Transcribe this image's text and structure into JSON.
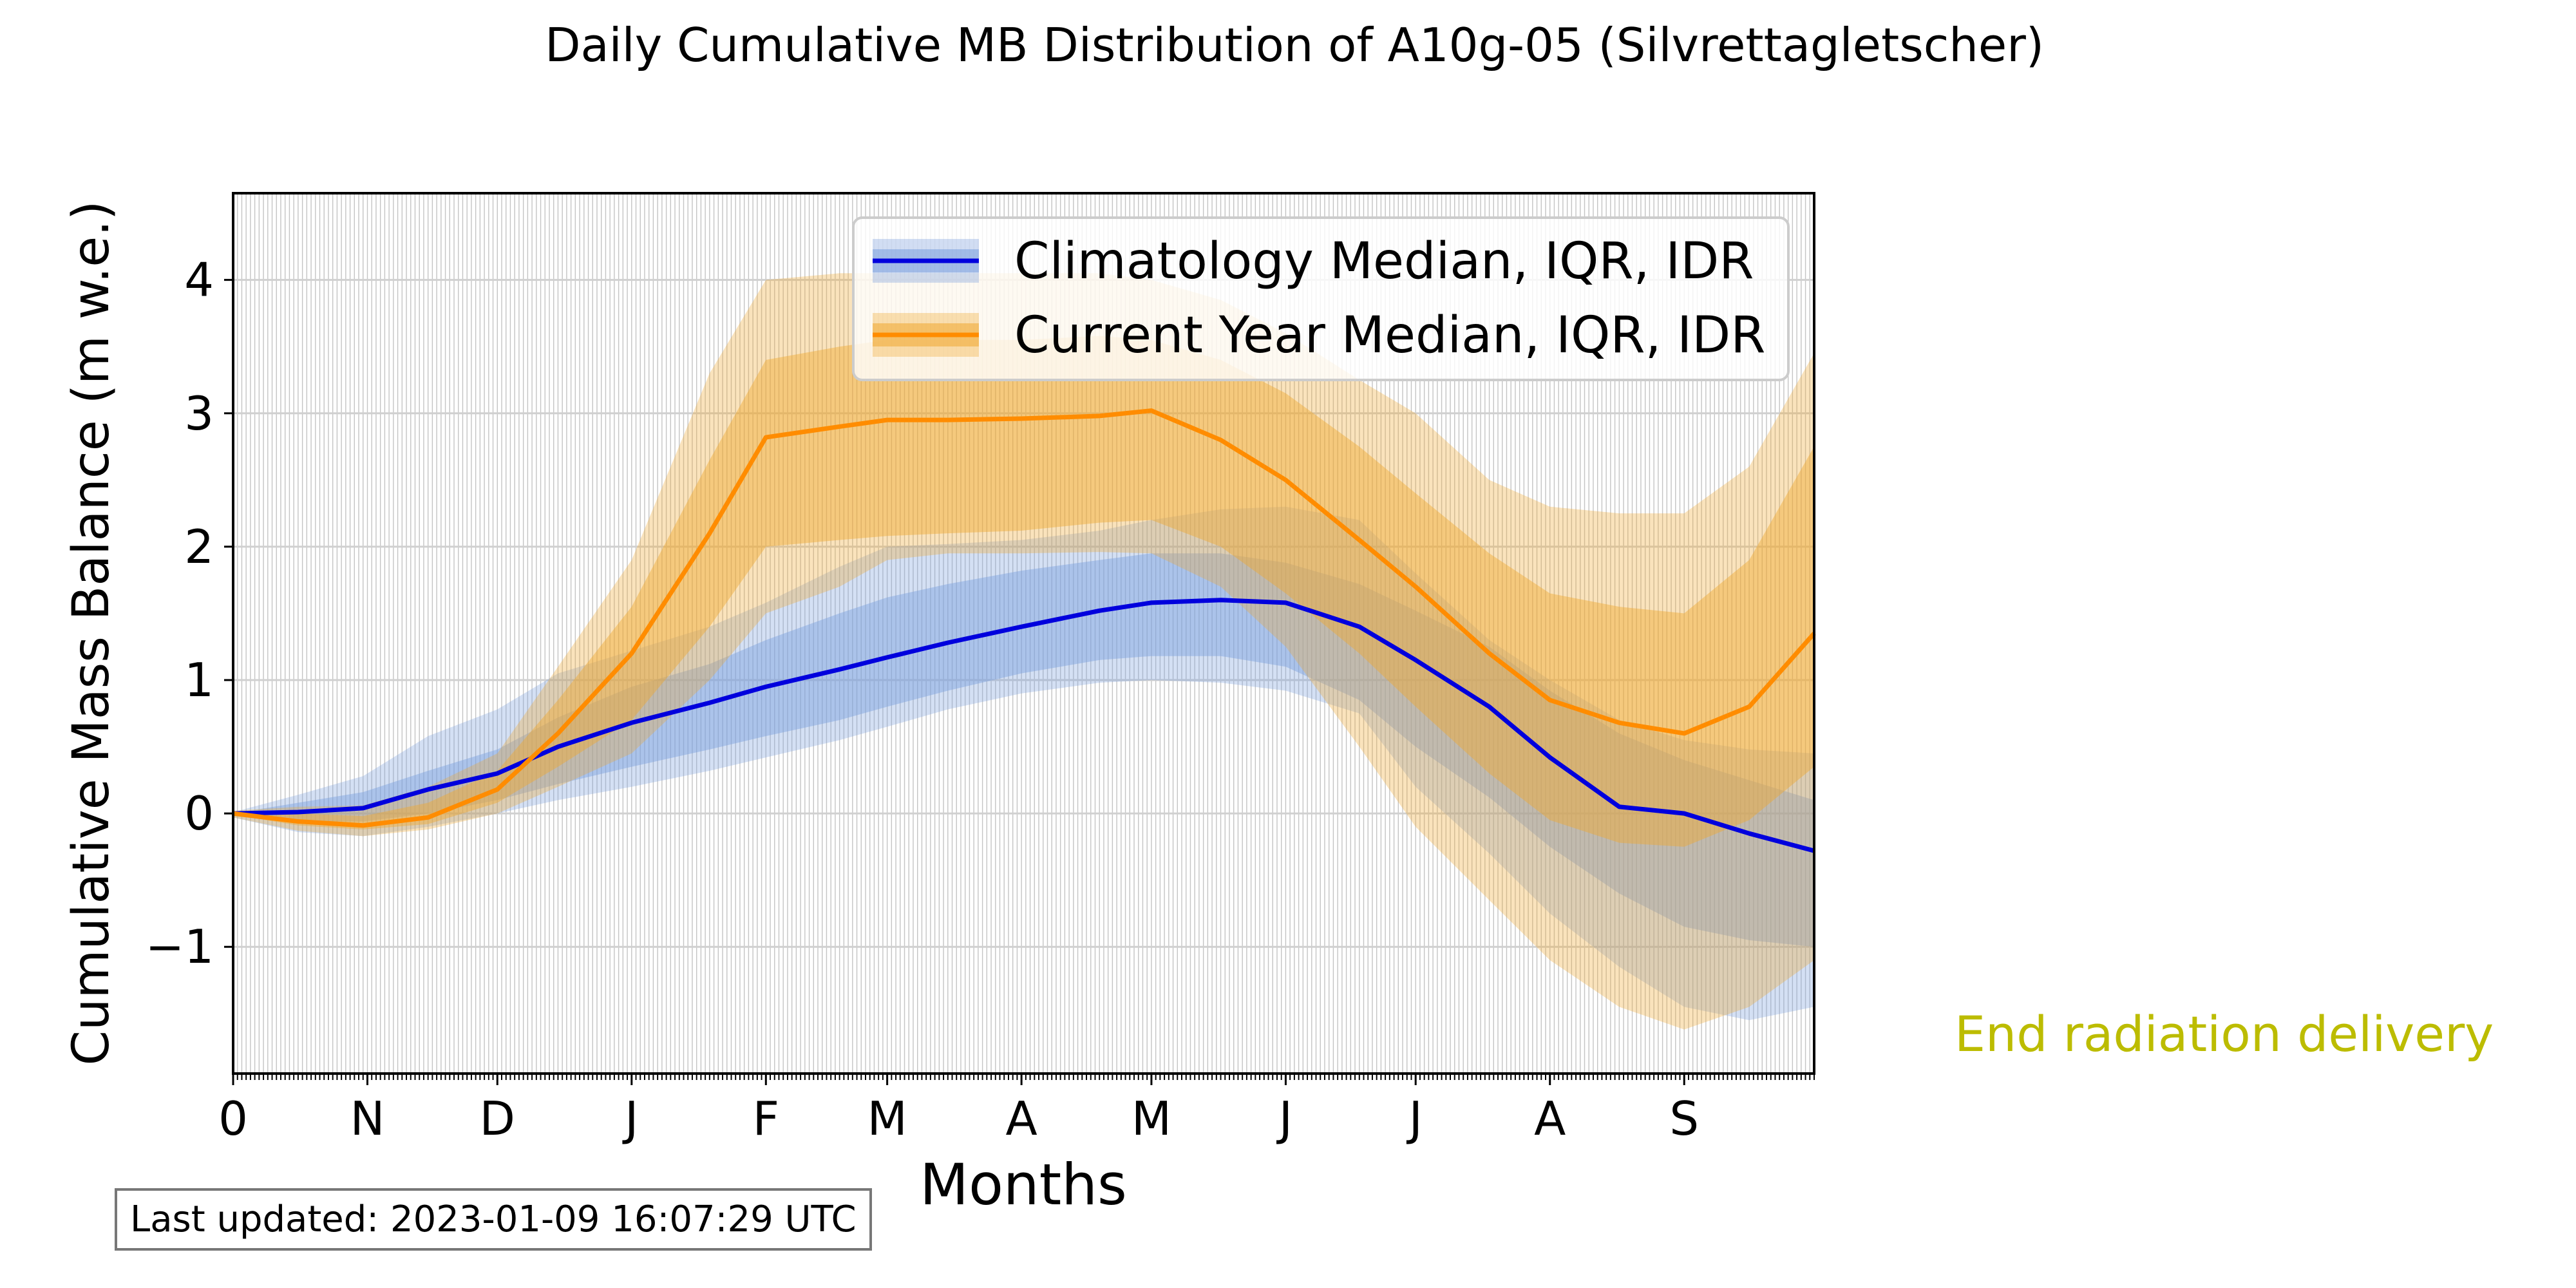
{
  "footer": {
    "last_updated": "Last updated: 2023-01-09 16:07:29 UTC"
  },
  "colors": {
    "climatology_line": "#0000dd",
    "climatology_band": "#7a9fdd",
    "current_line": "#ff8c00",
    "current_band": "#f0a830",
    "annotation": "#bcbc00",
    "grid": "#d0d0d0"
  },
  "chart_data": {
    "type": "line",
    "title": "Daily Cumulative MB Distribution of A10g-05 (Silvrettagletscher)",
    "xlabel": "Months",
    "ylabel": "Cumulative Mass Balance (m w.e.)",
    "x_unit": "day of hydrological year",
    "xlim": [
      0,
      365
    ],
    "ylim": [
      -1.95,
      4.65
    ],
    "yticks": [
      -1,
      0,
      1,
      2,
      3,
      4
    ],
    "ytick_labels": [
      "−1",
      "0",
      "1",
      "2",
      "3",
      "4"
    ],
    "month_ticks": [
      {
        "x": 0,
        "label": "0"
      },
      {
        "x": 31,
        "label": "N"
      },
      {
        "x": 61,
        "label": "D"
      },
      {
        "x": 92,
        "label": "J"
      },
      {
        "x": 123,
        "label": "F"
      },
      {
        "x": 151,
        "label": "M"
      },
      {
        "x": 182,
        "label": "A"
      },
      {
        "x": 212,
        "label": "M"
      },
      {
        "x": 243,
        "label": "J"
      },
      {
        "x": 273,
        "label": "J"
      },
      {
        "x": 304,
        "label": "A"
      },
      {
        "x": 335,
        "label": "S"
      }
    ],
    "grid": true,
    "legend_position": "top-right",
    "annotation": "End radiation delivery",
    "series": [
      {
        "name": "Climatology Median, IQR, IDR",
        "x": [
          0,
          15,
          30,
          45,
          61,
          75,
          92,
          110,
          123,
          140,
          151,
          165,
          182,
          200,
          212,
          228,
          243,
          260,
          273,
          290,
          304,
          320,
          335,
          350,
          365
        ],
        "median": [
          0,
          0.01,
          0.04,
          0.18,
          0.3,
          0.5,
          0.68,
          0.83,
          0.95,
          1.08,
          1.17,
          1.28,
          1.4,
          1.52,
          1.58,
          1.6,
          1.58,
          1.4,
          1.15,
          0.8,
          0.42,
          0.05,
          0.0,
          -0.15,
          -0.28
        ],
        "q25": [
          -0.02,
          -0.06,
          -0.06,
          0.0,
          0.1,
          0.22,
          0.35,
          0.48,
          0.58,
          0.7,
          0.8,
          0.92,
          1.05,
          1.15,
          1.18,
          1.18,
          1.1,
          0.85,
          0.5,
          0.12,
          -0.25,
          -0.6,
          -0.85,
          -0.95,
          -1.0
        ],
        "q75": [
          0,
          0.08,
          0.16,
          0.32,
          0.48,
          0.72,
          0.95,
          1.12,
          1.3,
          1.5,
          1.62,
          1.72,
          1.82,
          1.9,
          1.95,
          1.95,
          1.88,
          1.72,
          1.52,
          1.25,
          0.92,
          0.6,
          0.4,
          0.25,
          0.1
        ],
        "p10": [
          -0.03,
          -0.14,
          -0.17,
          -0.1,
          0.0,
          0.1,
          0.2,
          0.32,
          0.42,
          0.55,
          0.65,
          0.78,
          0.9,
          0.98,
          1.0,
          0.98,
          0.92,
          0.75,
          0.2,
          -0.3,
          -0.75,
          -1.15,
          -1.45,
          -1.55,
          -1.45
        ],
        "p90": [
          0.01,
          0.14,
          0.28,
          0.58,
          0.78,
          1.05,
          1.22,
          1.4,
          1.58,
          1.85,
          2.0,
          2.02,
          2.05,
          2.12,
          2.2,
          2.28,
          2.3,
          2.2,
          1.8,
          1.3,
          1.0,
          0.7,
          0.55,
          0.48,
          0.45
        ]
      },
      {
        "name": "Current Year Median, IQR, IDR",
        "x": [
          0,
          15,
          30,
          45,
          61,
          75,
          92,
          110,
          123,
          140,
          151,
          165,
          182,
          200,
          212,
          228,
          243,
          260,
          273,
          290,
          304,
          320,
          335,
          350,
          365
        ],
        "median": [
          0,
          -0.06,
          -0.09,
          -0.03,
          0.18,
          0.6,
          1.2,
          2.1,
          2.82,
          2.9,
          2.95,
          2.95,
          2.96,
          2.98,
          3.02,
          2.8,
          2.5,
          2.05,
          1.7,
          1.2,
          0.85,
          0.68,
          0.6,
          0.8,
          1.35
        ],
        "q25": [
          -0.01,
          -0.09,
          -0.12,
          -0.08,
          0.08,
          0.35,
          0.7,
          1.4,
          2.0,
          2.05,
          2.08,
          2.1,
          2.12,
          2.18,
          2.2,
          2.0,
          1.65,
          1.2,
          0.8,
          0.3,
          -0.05,
          -0.22,
          -0.25,
          -0.05,
          0.35
        ],
        "q75": [
          0.01,
          0.0,
          -0.02,
          0.08,
          0.32,
          0.85,
          1.55,
          2.65,
          3.4,
          3.5,
          3.55,
          3.55,
          3.55,
          3.58,
          3.55,
          3.4,
          3.15,
          2.75,
          2.4,
          1.95,
          1.65,
          1.55,
          1.5,
          1.9,
          2.75
        ],
        "p10": [
          -0.03,
          -0.13,
          -0.17,
          -0.12,
          0.0,
          0.2,
          0.45,
          1.0,
          1.5,
          1.7,
          1.9,
          1.95,
          1.95,
          1.96,
          1.95,
          1.7,
          1.25,
          0.5,
          -0.1,
          -0.65,
          -1.1,
          -1.45,
          -1.62,
          -1.45,
          -1.1
        ],
        "p90": [
          0.02,
          0.05,
          0.06,
          0.2,
          0.45,
          1.1,
          1.9,
          3.3,
          4.0,
          4.05,
          4.05,
          4.05,
          4.05,
          4.05,
          4.0,
          3.85,
          3.6,
          3.25,
          3.0,
          2.5,
          2.3,
          2.25,
          2.25,
          2.6,
          3.45
        ]
      }
    ]
  }
}
